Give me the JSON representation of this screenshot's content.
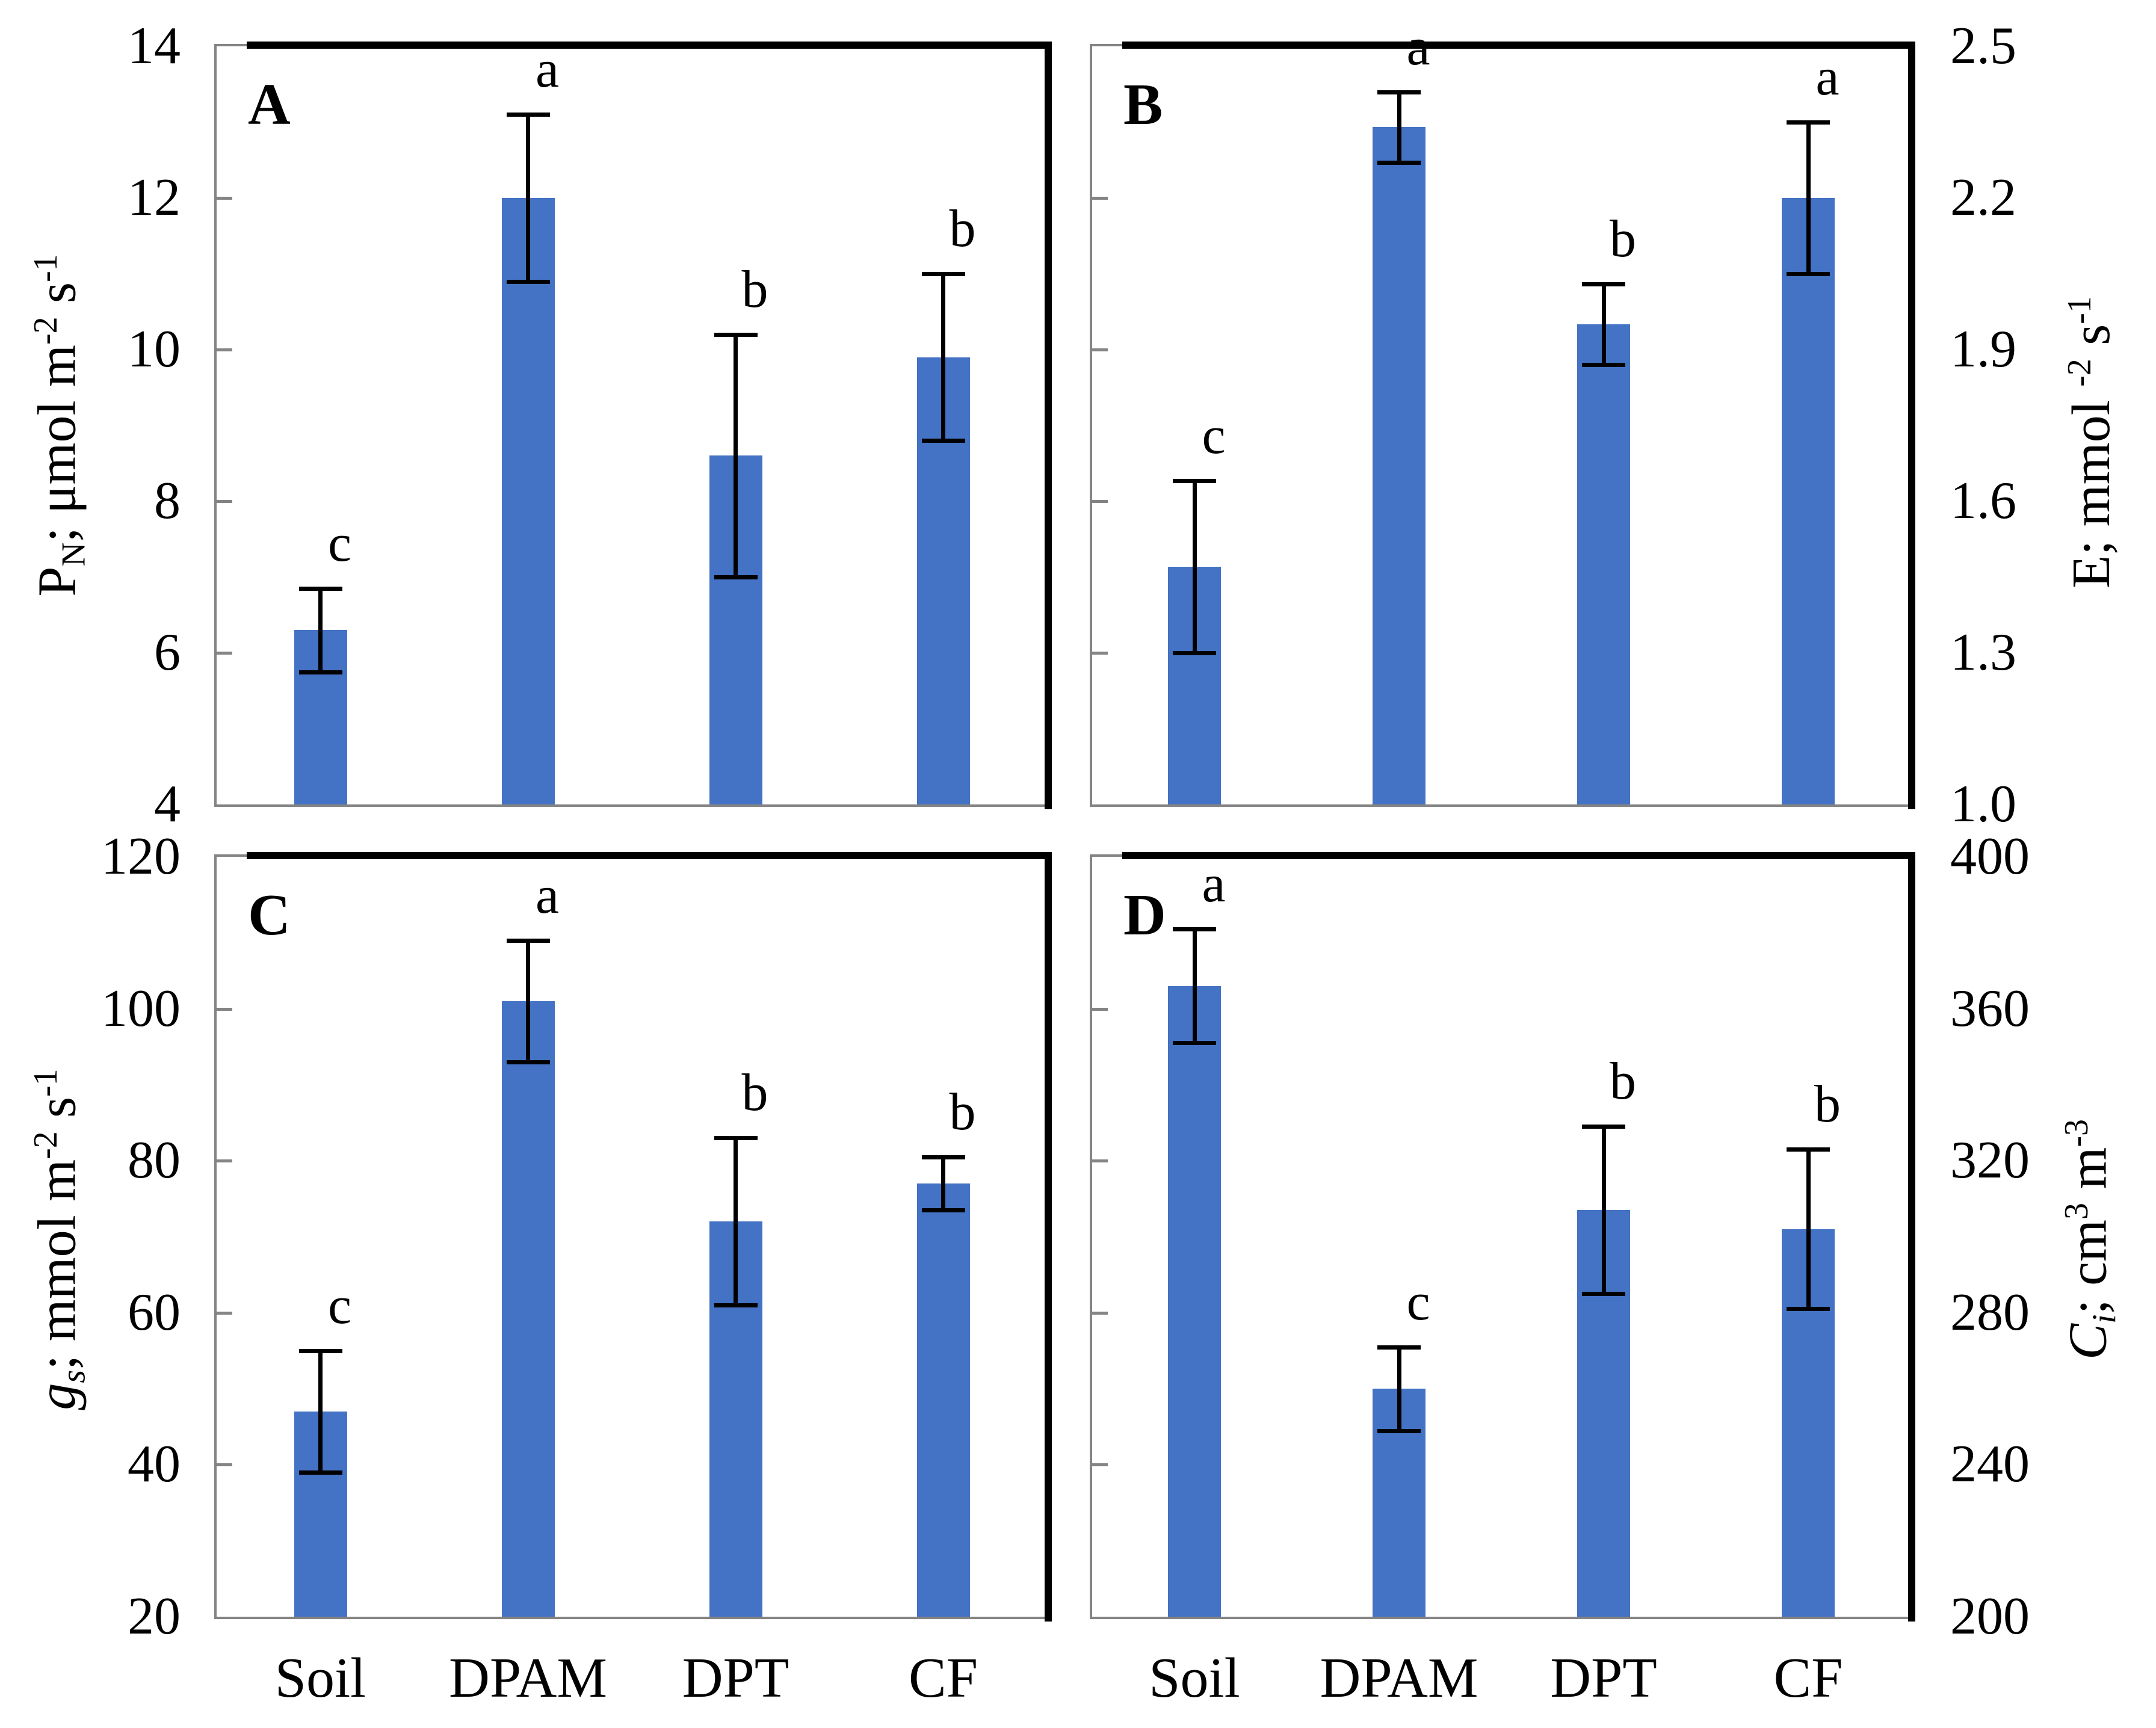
{
  "figure": {
    "description": "Four-panel bar chart figure (A, B, C, D) comparing Soil, DPAM, DPT, CF treatments",
    "bar_color": "#4472C4",
    "axis_gray": "#848484",
    "error_color": "#000000",
    "categories": [
      "Soil",
      "DPAM",
      "DPT",
      "CF"
    ]
  },
  "chart_data": [
    {
      "type": "bar",
      "panel_label": "A",
      "axis_side": "left",
      "ylabel_text": "PN; μmol m-2 s-1",
      "ylabel_parts": [
        {
          "t": "P"
        },
        {
          "t": "N",
          "style": "sub"
        },
        {
          "t": "; μmol m"
        },
        {
          "t": "-2",
          "style": "sup"
        },
        {
          "t": " s"
        },
        {
          "t": "-1",
          "style": "sup"
        }
      ],
      "ylim": [
        4,
        14
      ],
      "yticks": [
        {
          "v": 14,
          "label": "14"
        },
        {
          "v": 12,
          "label": "12"
        },
        {
          "v": 10,
          "label": "10"
        },
        {
          "v": 8,
          "label": "8"
        },
        {
          "v": 6,
          "label": "6"
        },
        {
          "v": 4,
          "label": "4"
        }
      ],
      "categories": [
        "Soil",
        "DPAM",
        "DPT",
        "CF"
      ],
      "values": [
        6.3,
        12.0,
        8.6,
        9.9
      ],
      "errors": [
        0.55,
        1.1,
        1.6,
        1.1
      ],
      "sig_letters": [
        "c",
        "a",
        "b",
        "b"
      ],
      "show_xlabels": false,
      "grid": false,
      "legend": null
    },
    {
      "type": "bar",
      "panel_label": "B",
      "axis_side": "right",
      "ylabel_text": "E; mmol -2 s-1",
      "ylabel_parts": [
        {
          "t": "E; mmol "
        },
        {
          "t": "-2",
          "style": "sup"
        },
        {
          "t": " s"
        },
        {
          "t": "-1",
          "style": "sup"
        }
      ],
      "ylim": [
        1.0,
        2.5
      ],
      "yticks": [
        {
          "v": 2.5,
          "label": "2.5"
        },
        {
          "v": 2.2,
          "label": "2.2"
        },
        {
          "v": 1.9,
          "label": "1.9"
        },
        {
          "v": 1.6,
          "label": "1.6"
        },
        {
          "v": 1.3,
          "label": "1.3"
        },
        {
          "v": 1.0,
          "label": "1.0"
        }
      ],
      "categories": [
        "Soil",
        "DPAM",
        "DPT",
        "CF"
      ],
      "values": [
        1.47,
        2.34,
        1.95,
        2.2
      ],
      "errors": [
        0.17,
        0.07,
        0.08,
        0.15
      ],
      "sig_letters": [
        "c",
        "a",
        "b",
        "a"
      ],
      "show_xlabels": false,
      "grid": false,
      "legend": null
    },
    {
      "type": "bar",
      "panel_label": "C",
      "axis_side": "left",
      "ylabel_text": "gs; mmol m-2 s-1",
      "ylabel_parts": [
        {
          "t": "g",
          "style": "italic"
        },
        {
          "t": "s",
          "style": "sub-italic"
        },
        {
          "t": "; mmol m"
        },
        {
          "t": "-2",
          "style": "sup"
        },
        {
          "t": " s"
        },
        {
          "t": "-1",
          "style": "sup"
        }
      ],
      "ylim": [
        20,
        120
      ],
      "yticks": [
        {
          "v": 120,
          "label": "120"
        },
        {
          "v": 100,
          "label": "100"
        },
        {
          "v": 80,
          "label": "80"
        },
        {
          "v": 60,
          "label": "60"
        },
        {
          "v": 40,
          "label": "40"
        },
        {
          "v": 20,
          "label": "20"
        }
      ],
      "categories": [
        "Soil",
        "DPAM",
        "DPT",
        "CF"
      ],
      "values": [
        47,
        101,
        72,
        77
      ],
      "errors": [
        8,
        8,
        11,
        3.5
      ],
      "sig_letters": [
        "c",
        "a",
        "b",
        "b"
      ],
      "show_xlabels": true,
      "grid": false,
      "legend": null
    },
    {
      "type": "bar",
      "panel_label": "D",
      "axis_side": "right",
      "ylabel_text": "Ci; cm3 m-3",
      "ylabel_parts": [
        {
          "t": "C",
          "style": "italic"
        },
        {
          "t": "i",
          "style": "sub-italic"
        },
        {
          "t": "; cm",
          "style": ""
        },
        {
          "t": "3",
          "style": "sup"
        },
        {
          "t": " m",
          "style": ""
        },
        {
          "t": "-3",
          "style": "sup"
        }
      ],
      "ylim": [
        200,
        400
      ],
      "yticks": [
        {
          "v": 400,
          "label": "400"
        },
        {
          "v": 360,
          "label": "360"
        },
        {
          "v": 320,
          "label": "320"
        },
        {
          "v": 280,
          "label": "280"
        },
        {
          "v": 240,
          "label": "240"
        },
        {
          "v": 200,
          "label": "200"
        }
      ],
      "categories": [
        "Soil",
        "DPAM",
        "DPT",
        "CF"
      ],
      "values": [
        366,
        260,
        307,
        302
      ],
      "errors": [
        15,
        11,
        22,
        21
      ],
      "sig_letters": [
        "a",
        "c",
        "b",
        "b"
      ],
      "show_xlabels": true,
      "grid": false,
      "legend": null
    }
  ]
}
